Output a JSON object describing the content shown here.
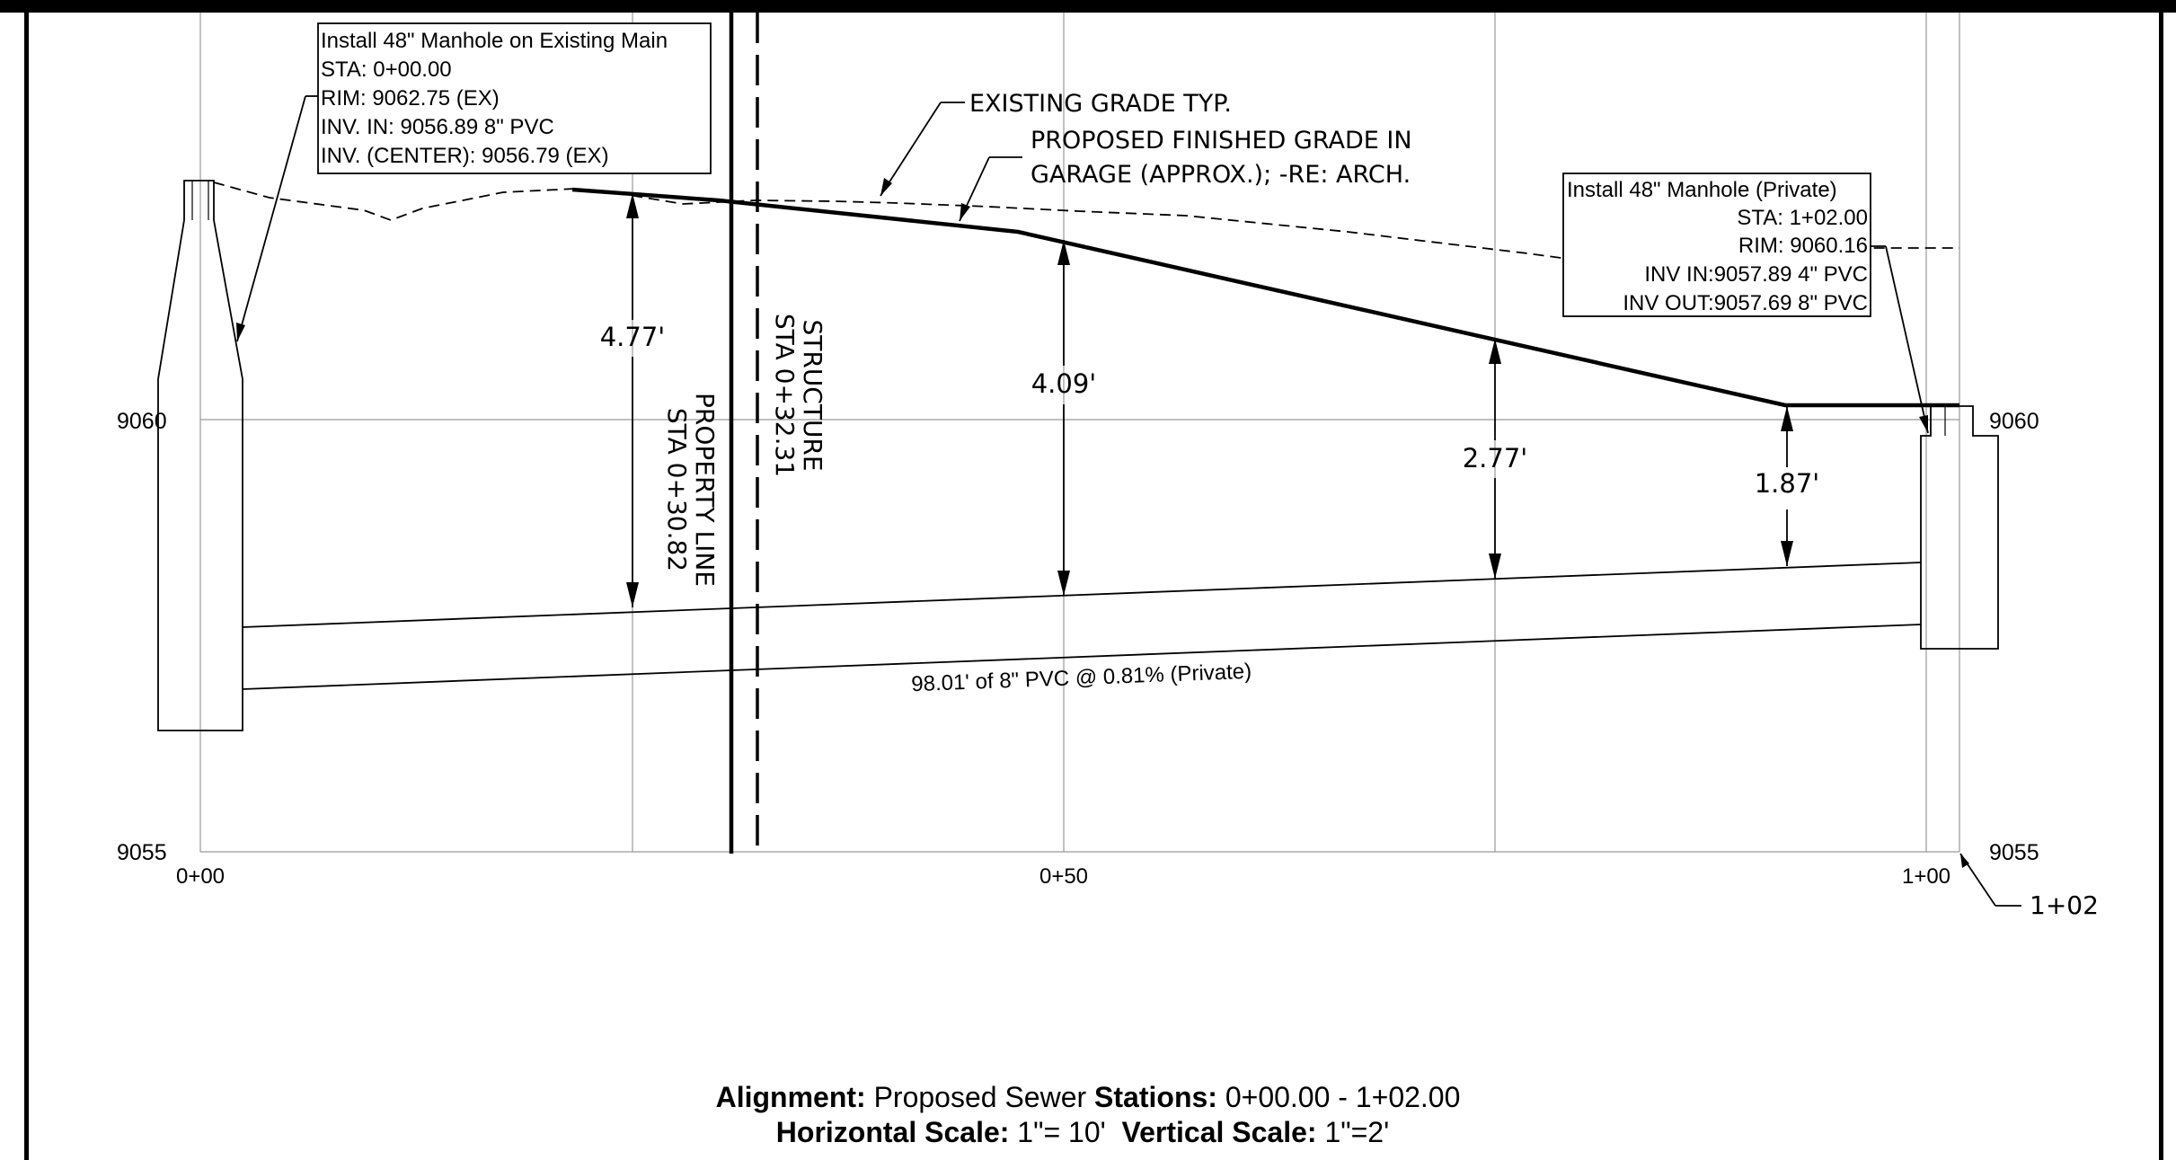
{
  "profile": {
    "elevation_labels": {
      "e9060_left": "9060",
      "e9055_left": "9055",
      "e9060_right": "9060",
      "e9055_right": "9055"
    },
    "station_labels": {
      "s0": "0+00",
      "s50": "0+50",
      "s100": "1+00",
      "s102": "1+02"
    },
    "callout_mh1": {
      "lines": [
        "Install 48\" Manhole on Existing Main",
        "STA: 0+00.00",
        "RIM: 9062.75 (EX)",
        "INV. IN: 9056.89 8\" PVC",
        "INV. (CENTER): 9056.79 (EX)"
      ]
    },
    "callout_mh2": {
      "lines": [
        "Install 48\" Manhole (Private)",
        "STA: 1+02.00",
        "RIM: 9060.16",
        "INV IN:9057.89 4\" PVC",
        "INV OUT:9057.69 8\" PVC"
      ]
    },
    "notes": {
      "existing_grade": "EXISTING GRADE TYP.",
      "finished_grade_1": "PROPOSED FINISHED GRADE IN",
      "finished_grade_2": "GARAGE (APPROX.); -RE: ARCH."
    },
    "property_line": {
      "line1": "PROPERTY LINE",
      "line2": "STA 0+30.82"
    },
    "structure": {
      "line1": "STRUCTURE",
      "line2": "STA 0+32.31"
    },
    "cover_depths": [
      "4.77'",
      "4.09'",
      "2.77'",
      "1.87'"
    ],
    "pipe_label": "98.01' of 8\" PVC @ 0.81% (Private)"
  },
  "footer": {
    "alignment_label": "Alignment:",
    "alignment_value": " Proposed Sewer ",
    "stations_label": "Stations:",
    "stations_value": " 0+00.00 - 1+02.00",
    "hscale_label": "Horizontal Scale:",
    "hscale_value": " 1\"= 10'  ",
    "vscale_label": "Vertical Scale:",
    "vscale_value": " 1\"=2'"
  }
}
